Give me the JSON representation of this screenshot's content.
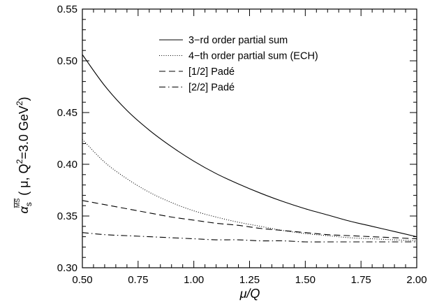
{
  "chart_data": {
    "type": "line",
    "title": "",
    "xlabel": "μ/Q",
    "ylabel": "α_s^{MS}(μ, Q² = 3.0 GeV²)",
    "ylabel_parts": {
      "alpha": "α",
      "sub": "s",
      "sup": "MS",
      "rest": "( μ, Q",
      "q_exp": "2",
      "eq": "=3.0 GeV",
      "gev_exp": "2",
      "close": ")"
    },
    "xlim": [
      0.5,
      2.0
    ],
    "ylim": [
      0.3,
      0.55
    ],
    "grid": false,
    "legend_position": "top-right",
    "x_ticks": [
      {
        "value": 0.5,
        "label": "0.50"
      },
      {
        "value": 0.75,
        "label": "0.75"
      },
      {
        "value": 1.0,
        "label": "1.00"
      },
      {
        "value": 1.25,
        "label": "1.25"
      },
      {
        "value": 1.5,
        "label": "1.50"
      },
      {
        "value": 1.75,
        "label": "1.75"
      },
      {
        "value": 2.0,
        "label": "2.00"
      }
    ],
    "y_ticks": [
      {
        "value": 0.3,
        "label": "0.30"
      },
      {
        "value": 0.35,
        "label": "0.35"
      },
      {
        "value": 0.4,
        "label": "0.40"
      },
      {
        "value": 0.45,
        "label": "0.45"
      },
      {
        "value": 0.5,
        "label": "0.50"
      },
      {
        "value": 0.55,
        "label": "0.55"
      }
    ],
    "x": [
      0.5,
      0.6,
      0.7,
      0.8,
      0.9,
      1.0,
      1.1,
      1.2,
      1.3,
      1.4,
      1.5,
      1.6,
      1.7,
      1.8,
      1.9,
      2.0
    ],
    "series": [
      {
        "name": "3−rd order partial sum",
        "style": "solid",
        "values": [
          0.506,
          0.476,
          0.452,
          0.433,
          0.417,
          0.403,
          0.391,
          0.381,
          0.372,
          0.364,
          0.357,
          0.351,
          0.345,
          0.34,
          0.335,
          0.33
        ]
      },
      {
        "name": "4−th order partial sum (ECH)",
        "style": "dotted",
        "values": [
          0.424,
          0.402,
          0.386,
          0.373,
          0.363,
          0.355,
          0.349,
          0.344,
          0.34,
          0.336,
          0.333,
          0.331,
          0.329,
          0.328,
          0.327,
          0.326
        ]
      },
      {
        "name": "[1/2] Padé",
        "style": "dashed",
        "values": [
          0.365,
          0.361,
          0.357,
          0.353,
          0.349,
          0.346,
          0.343,
          0.341,
          0.338,
          0.336,
          0.334,
          0.332,
          0.331,
          0.33,
          0.329,
          0.328
        ]
      },
      {
        "name": "[2/2] Padé",
        "style": "dashdot",
        "values": [
          0.334,
          0.332,
          0.331,
          0.33,
          0.329,
          0.328,
          0.327,
          0.327,
          0.326,
          0.326,
          0.325,
          0.325,
          0.325,
          0.325,
          0.325,
          0.325
        ]
      }
    ]
  }
}
